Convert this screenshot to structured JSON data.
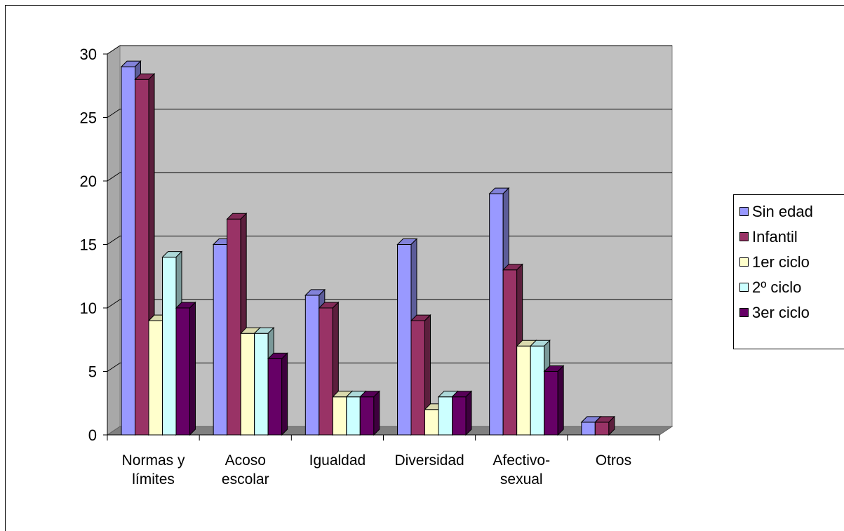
{
  "chart_data": {
    "type": "bar",
    "categories": [
      [
        "Normas y",
        "límites"
      ],
      [
        "Acoso",
        "escolar"
      ],
      [
        "Igualdad"
      ],
      [
        "Diversidad"
      ],
      [
        "Afectivo-",
        "sexual"
      ],
      [
        "Otros"
      ]
    ],
    "y_ticks": [
      "0",
      "5",
      "10",
      "15",
      "20",
      "25",
      "30"
    ],
    "ylim": [
      0,
      30
    ],
    "grid": true,
    "legend_position": "right",
    "series": [
      {
        "name": "Sin edad",
        "color": "#9999ff",
        "values": [
          29,
          15,
          11,
          15,
          19,
          1
        ]
      },
      {
        "name": "Infantil",
        "color": "#993366",
        "values": [
          28,
          17,
          10,
          9,
          13,
          1
        ]
      },
      {
        "name": "1er ciclo",
        "color": "#ffffcc",
        "values": [
          9,
          8,
          3,
          2,
          7,
          0
        ]
      },
      {
        "name": "2º ciclo",
        "color": "#ccffff",
        "values": [
          14,
          8,
          3,
          3,
          7,
          0
        ]
      },
      {
        "name": "3er ciclo",
        "color": "#660066",
        "values": [
          10,
          6,
          3,
          3,
          5,
          0
        ]
      }
    ],
    "plot_background": "#c0c0c0",
    "floor_color": "#808080"
  }
}
